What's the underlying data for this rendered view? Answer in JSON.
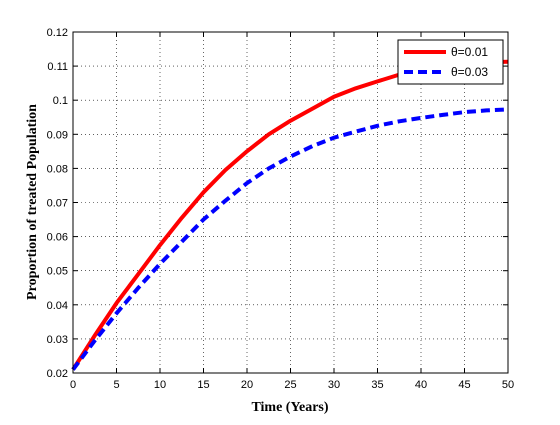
{
  "chart_data": {
    "type": "line",
    "title": "",
    "xlabel": "Time (Years)",
    "ylabel": "Proportion of treated Population",
    "xlim": [
      0,
      50
    ],
    "ylim": [
      0.02,
      0.12
    ],
    "x_ticks": [
      "0",
      "5",
      "10",
      "15",
      "20",
      "25",
      "30",
      "35",
      "40",
      "45",
      "50"
    ],
    "y_ticks": [
      "0.02",
      "0.03",
      "0.04",
      "0.05",
      "0.06",
      "0.07",
      "0.08",
      "0.09",
      "0.1",
      "0.11",
      "0.12"
    ],
    "grid": true,
    "legend_position": "top-right",
    "series": [
      {
        "name": "θ=0.01",
        "color": "#ff0000",
        "style": "solid",
        "x": [
          0,
          2.5,
          5,
          7.5,
          10,
          12.5,
          15,
          17.5,
          20,
          22.5,
          25,
          27.5,
          30,
          32.5,
          35,
          37.5,
          40,
          42.5,
          45,
          47.5,
          50
        ],
        "values": [
          0.021,
          0.031,
          0.0405,
          0.049,
          0.0575,
          0.0655,
          0.073,
          0.0795,
          0.085,
          0.09,
          0.094,
          0.0975,
          0.101,
          0.1035,
          0.1055,
          0.1075,
          0.109,
          0.11,
          0.1107,
          0.1111,
          0.1113
        ]
      },
      {
        "name": "θ=0.03",
        "color": "#0000ff",
        "style": "dashed",
        "x": [
          0,
          2.5,
          5,
          7.5,
          10,
          12.5,
          15,
          17.5,
          20,
          22.5,
          25,
          27.5,
          30,
          32.5,
          35,
          37.5,
          40,
          42.5,
          45,
          47.5,
          50
        ],
        "values": [
          0.021,
          0.0295,
          0.0375,
          0.045,
          0.052,
          0.0585,
          0.065,
          0.0705,
          0.0757,
          0.08,
          0.0835,
          0.0865,
          0.089,
          0.0908,
          0.0925,
          0.0938,
          0.0948,
          0.0957,
          0.0965,
          0.097,
          0.0973
        ]
      }
    ]
  }
}
